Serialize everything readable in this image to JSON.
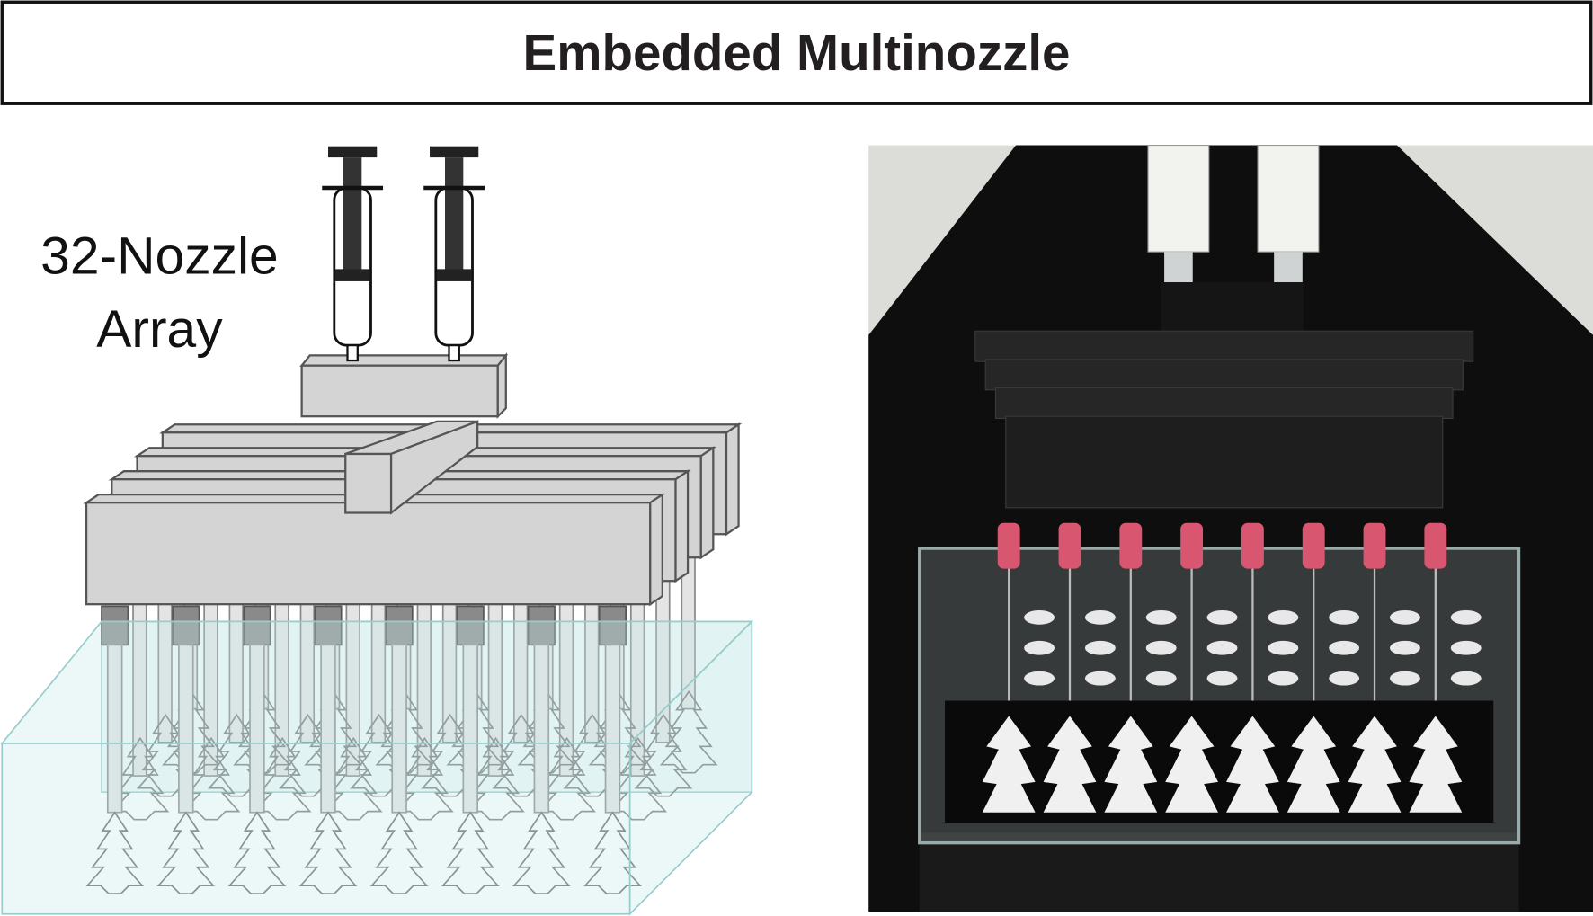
{
  "header": {
    "title": "Embedded Multinozzle"
  },
  "schematic": {
    "label_lines": [
      "32-Nozzle",
      "Array"
    ]
  }
}
